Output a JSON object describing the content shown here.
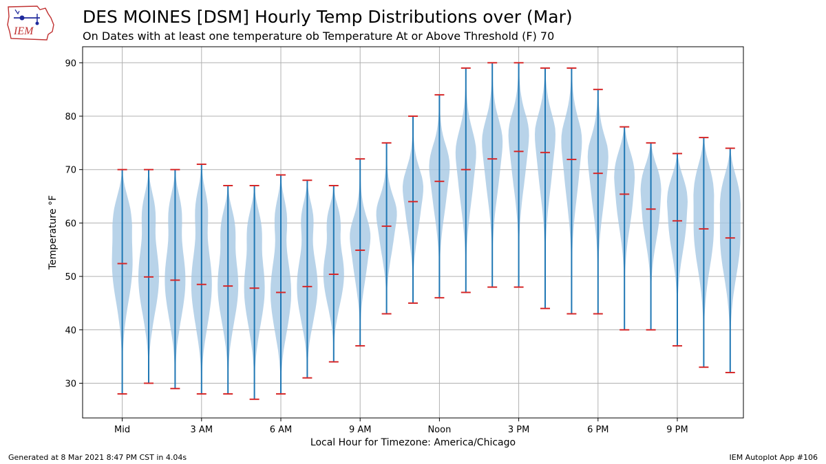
{
  "header": {
    "title": "DES MOINES [DSM] Hourly Temp Distributions over (Mar)",
    "subtitle": "On Dates with at least one temperature ob Temperature At or Above Threshold (F) 70",
    "logo_text": "IEM"
  },
  "footer": {
    "generated": "Generated at 8 Mar 2021 8:47 PM CST in 4.04s",
    "app": "IEM Autoplot App #106"
  },
  "colors": {
    "violin_fill": "#a6c8e3",
    "whisker": "#1f77b4",
    "marker": "#d62728",
    "grid": "#b0b0b0"
  },
  "chart_data": {
    "type": "violin",
    "title": "DES MOINES [DSM] Hourly Temp Distributions over (Mar)",
    "xlabel": "Local Hour for Timezone: America/Chicago",
    "ylabel": "Temperature °F",
    "ylim": [
      23.5,
      93
    ],
    "xlim": [
      -1.5,
      23.5
    ],
    "grid": true,
    "yticks": [
      30,
      40,
      50,
      60,
      70,
      80,
      90
    ],
    "xticks": [
      {
        "hour": 0,
        "label": "Mid"
      },
      {
        "hour": 3,
        "label": "3 AM"
      },
      {
        "hour": 6,
        "label": "6 AM"
      },
      {
        "hour": 9,
        "label": "9 AM"
      },
      {
        "hour": 12,
        "label": "Noon"
      },
      {
        "hour": 15,
        "label": "3 PM"
      },
      {
        "hour": 18,
        "label": "6 PM"
      },
      {
        "hour": 21,
        "label": "9 PM"
      }
    ],
    "hours": [
      0,
      1,
      2,
      3,
      4,
      5,
      6,
      7,
      8,
      9,
      10,
      11,
      12,
      13,
      14,
      15,
      16,
      17,
      18,
      19,
      20,
      21,
      22,
      23
    ],
    "min": [
      28,
      30,
      29,
      28,
      28,
      27,
      28,
      31,
      34,
      37,
      43,
      45,
      46,
      47,
      48,
      48,
      44,
      43,
      43,
      40,
      40,
      37,
      33,
      32
    ],
    "mean": [
      52.4,
      49.9,
      49.3,
      48.5,
      48.2,
      47.8,
      47.0,
      48.1,
      50.4,
      54.9,
      59.4,
      64.0,
      67.8,
      70.0,
      72.0,
      73.4,
      73.2,
      71.9,
      69.3,
      65.4,
      62.6,
      60.4,
      58.9,
      57.2
    ],
    "max": [
      70,
      70,
      70,
      71,
      67,
      67,
      69,
      68,
      67,
      72,
      75,
      80,
      84,
      89,
      90,
      90,
      89,
      89,
      85,
      78,
      75,
      73,
      76,
      74
    ]
  }
}
